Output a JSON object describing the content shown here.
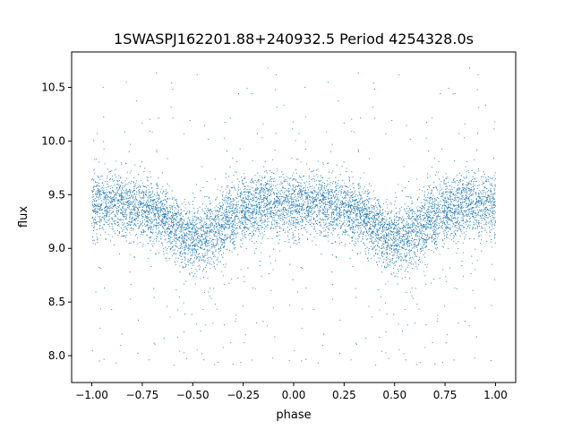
{
  "chart_data": {
    "type": "scatter",
    "title": "1SWASPJ162201.88+240932.5 Period 4254328.0s",
    "xlabel": "phase",
    "ylabel": "flux",
    "xlim": [
      -1.1,
      1.1
    ],
    "ylim": [
      7.75,
      10.83
    ],
    "x_ticks": [
      -1.0,
      -0.75,
      -0.5,
      -0.25,
      0.0,
      0.25,
      0.5,
      0.75,
      1.0
    ],
    "x_tick_labels": [
      "−1.00",
      "−0.75",
      "−0.50",
      "−0.25",
      "0.00",
      "0.25",
      "0.50",
      "0.75",
      "1.00"
    ],
    "y_ticks": [
      8.0,
      8.5,
      9.0,
      9.5,
      10.0,
      10.5
    ],
    "y_tick_labels": [
      "8.0",
      "8.5",
      "9.0",
      "9.5",
      "10.0",
      "10.5"
    ],
    "grid": false,
    "marker_color": "#1f77b4",
    "light_curve_profile": {
      "phase": [
        0.0,
        0.1,
        0.2,
        0.25,
        0.3,
        0.35,
        0.4,
        0.45,
        0.5,
        0.55,
        0.6,
        0.65,
        0.7,
        0.75,
        0.8,
        0.85,
        0.9,
        1.0
      ],
      "flux": [
        9.4,
        9.42,
        9.4,
        9.38,
        9.35,
        9.3,
        9.2,
        9.12,
        9.1,
        9.1,
        9.15,
        9.22,
        9.3,
        9.36,
        9.38,
        9.4,
        9.42,
        9.4
      ],
      "scatter_sigma": 0.15
    },
    "n_points_approx": 8000
  }
}
